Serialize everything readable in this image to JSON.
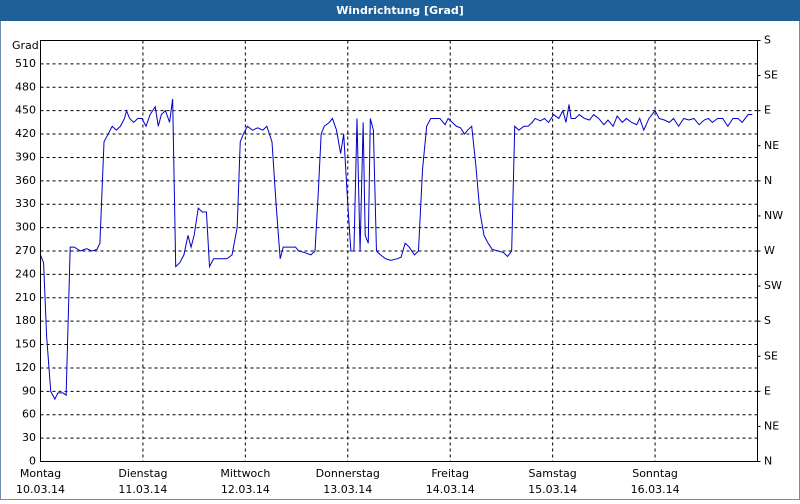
{
  "chart_data": {
    "type": "line",
    "title": "Windrichtung [Grad]",
    "ylabel": "Grad",
    "xlim": [
      0,
      7
    ],
    "xticks": [
      {
        "value": 0,
        "label": "Montag"
      },
      {
        "value": 1,
        "label": "Dienstag"
      },
      {
        "value": 2,
        "label": "Mittwoch"
      },
      {
        "value": 3,
        "label": "Donnerstag"
      },
      {
        "value": 4,
        "label": "Freitag"
      },
      {
        "value": 5,
        "label": "Samstag"
      },
      {
        "value": 6,
        "label": "Sonntag"
      }
    ],
    "xtick_dates": [
      "10.03.14",
      "11.03.14",
      "12.03.14",
      "13.03.14",
      "14.03.14",
      "15.03.14",
      "16.03.14"
    ],
    "ylim": [
      0,
      540
    ],
    "yticks": [
      0,
      30,
      60,
      90,
      120,
      150,
      180,
      210,
      240,
      270,
      300,
      330,
      360,
      390,
      420,
      450,
      480,
      510
    ],
    "y2lim": [
      0,
      540
    ],
    "y2ticks": [
      {
        "value": 0,
        "label": "N"
      },
      {
        "value": 45,
        "label": "NE"
      },
      {
        "value": 90,
        "label": "E"
      },
      {
        "value": 135,
        "label": "SE"
      },
      {
        "value": 180,
        "label": "S"
      },
      {
        "value": 225,
        "label": "SW"
      },
      {
        "value": 270,
        "label": "W"
      },
      {
        "value": 315,
        "label": "NW"
      },
      {
        "value": 360,
        "label": "N"
      },
      {
        "value": 405,
        "label": "NE"
      },
      {
        "value": 450,
        "label": "E"
      },
      {
        "value": 495,
        "label": "SE"
      },
      {
        "value": 540,
        "label": "S"
      }
    ],
    "grid": true,
    "color": "#0000c8",
    "x": [
      0,
      0.03,
      0.06,
      0.1,
      0.14,
      0.17,
      0.22,
      0.25,
      0.29,
      0.33,
      0.39,
      0.45,
      0.5,
      0.55,
      0.58,
      0.62,
      0.66,
      0.7,
      0.74,
      0.78,
      0.82,
      0.84,
      0.87,
      0.91,
      0.95,
      0.99,
      1.03,
      1.07,
      1.12,
      1.15,
      1.18,
      1.22,
      1.26,
      1.29,
      1.32,
      1.36,
      1.4,
      1.44,
      1.47,
      1.5,
      1.54,
      1.58,
      1.62,
      1.65,
      1.69,
      1.75,
      1.82,
      1.87,
      1.92,
      1.95,
      1.98,
      2.02,
      2.07,
      2.12,
      2.17,
      2.21,
      2.26,
      2.3,
      2.34,
      2.37,
      2.43,
      2.49,
      2.52,
      2.58,
      2.64,
      2.68,
      2.71,
      2.74,
      2.77,
      2.82,
      2.85,
      2.89,
      2.93,
      2.96,
      3.0,
      3.03,
      3.06,
      3.09,
      3.12,
      3.15,
      3.17,
      3.2,
      3.22,
      3.25,
      3.28,
      3.32,
      3.37,
      3.42,
      3.48,
      3.52,
      3.56,
      3.6,
      3.65,
      3.69,
      3.73,
      3.77,
      3.81,
      3.85,
      3.9,
      3.95,
      3.98,
      4.02,
      4.06,
      4.1,
      4.14,
      4.17,
      4.21,
      4.25,
      4.29,
      4.33,
      4.37,
      4.41,
      4.47,
      4.52,
      4.56,
      4.6,
      4.63,
      4.67,
      4.72,
      4.76,
      4.8,
      4.83,
      4.88,
      4.92,
      4.96,
      5.01,
      5.06,
      5.1,
      5.13,
      5.16,
      5.18,
      5.22,
      5.26,
      5.31,
      5.36,
      5.4,
      5.45,
      5.5,
      5.54,
      5.59,
      5.63,
      5.68,
      5.72,
      5.77,
      5.82,
      5.85,
      5.89,
      5.94,
      6.0,
      6.04,
      6.09,
      6.14,
      6.18,
      6.23,
      6.28,
      6.33,
      6.38,
      6.43,
      6.48,
      6.52,
      6.56,
      6.61,
      6.66,
      6.71,
      6.76,
      6.81,
      6.85,
      6.91,
      6.95
    ],
    "values": [
      265,
      255,
      160,
      90,
      80,
      88,
      88,
      85,
      275,
      275,
      270,
      273,
      270,
      272,
      280,
      410,
      420,
      430,
      425,
      430,
      440,
      450,
      440,
      435,
      440,
      440,
      430,
      445,
      455,
      430,
      445,
      450,
      435,
      465,
      250,
      255,
      265,
      290,
      275,
      290,
      325,
      320,
      320,
      250,
      260,
      260,
      260,
      265,
      300,
      410,
      420,
      430,
      425,
      428,
      425,
      430,
      410,
      330,
      260,
      275,
      275,
      275,
      270,
      268,
      265,
      270,
      340,
      420,
      430,
      435,
      440,
      425,
      395,
      420,
      330,
      270,
      270,
      440,
      270,
      435,
      290,
      280,
      440,
      425,
      270,
      265,
      260,
      258,
      260,
      262,
      280,
      275,
      265,
      270,
      375,
      430,
      440,
      440,
      440,
      432,
      440,
      435,
      430,
      428,
      420,
      425,
      430,
      380,
      320,
      290,
      280,
      272,
      270,
      268,
      263,
      270,
      430,
      425,
      430,
      430,
      435,
      440,
      437,
      440,
      435,
      445,
      440,
      450,
      435,
      458,
      440,
      440,
      445,
      440,
      438,
      445,
      440,
      432,
      438,
      430,
      443,
      435,
      440,
      435,
      432,
      440,
      425,
      440,
      450,
      440,
      438,
      435,
      440,
      430,
      440,
      438,
      440,
      432,
      438,
      440,
      435,
      440,
      440,
      430,
      440,
      440,
      435,
      445,
      445
    ]
  }
}
